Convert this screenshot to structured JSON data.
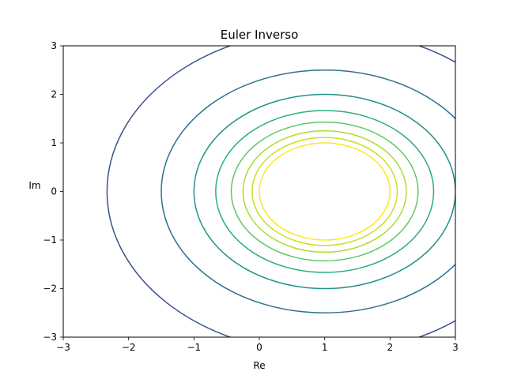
{
  "chart_data": {
    "type": "contour",
    "title": "Euler Inverso",
    "xlabel": "Re",
    "ylabel": "Im",
    "xlim": [
      -3,
      3
    ],
    "ylim": [
      -3,
      3
    ],
    "x_ticks": [
      -3,
      -2,
      -1,
      0,
      1,
      2,
      3
    ],
    "y_ticks": [
      -3,
      -2,
      -1,
      0,
      1,
      2,
      3
    ],
    "x_tick_labels": [
      "−3",
      "−2",
      "−1",
      "0",
      "1",
      "2",
      "3"
    ],
    "y_tick_labels": [
      "−3",
      "−2",
      "−1",
      "0",
      "1",
      "2",
      "3"
    ],
    "grid": false,
    "center": [
      1,
      0
    ],
    "contours": [
      {
        "radius": 3.33,
        "color": "#3b528b"
      },
      {
        "radius": 2.5,
        "color": "#2c728e"
      },
      {
        "radius": 2.0,
        "color": "#21918c"
      },
      {
        "radius": 1.667,
        "color": "#28ae80"
      },
      {
        "radius": 1.429,
        "color": "#5ec962"
      },
      {
        "radius": 1.25,
        "color": "#addc30"
      },
      {
        "radius": 1.111,
        "color": "#c8e020"
      },
      {
        "radius": 1.0,
        "color": "#fde725"
      }
    ]
  }
}
